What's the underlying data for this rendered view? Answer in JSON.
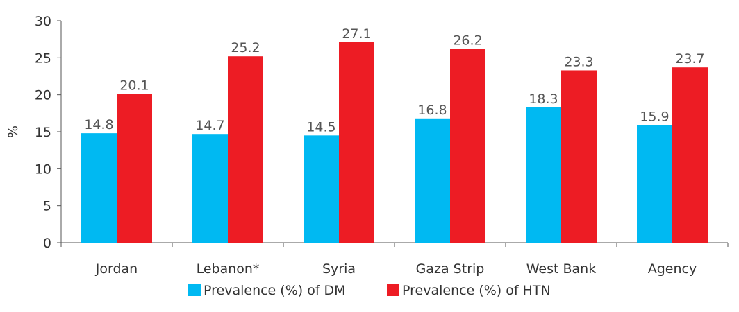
{
  "chart_data": {
    "type": "bar",
    "categories": [
      "Jordan",
      "Lebanon*",
      "Syria",
      "Gaza Strip",
      "West Bank",
      "Agency"
    ],
    "series": [
      {
        "name": "Prevalence (%) of DM",
        "values": [
          14.8,
          14.7,
          14.5,
          16.8,
          18.3,
          15.9
        ],
        "color": "#00B9F2"
      },
      {
        "name": "Prevalence (%) of HTN",
        "values": [
          20.1,
          25.2,
          27.1,
          26.2,
          23.3,
          23.7
        ],
        "color": "#ED1C24"
      }
    ],
    "ylabel": "%",
    "ylim": [
      0,
      30
    ],
    "yticks": [
      0,
      5,
      10,
      15,
      20,
      25,
      30
    ],
    "grid": false,
    "legend": "bottom",
    "data_labels": true
  }
}
